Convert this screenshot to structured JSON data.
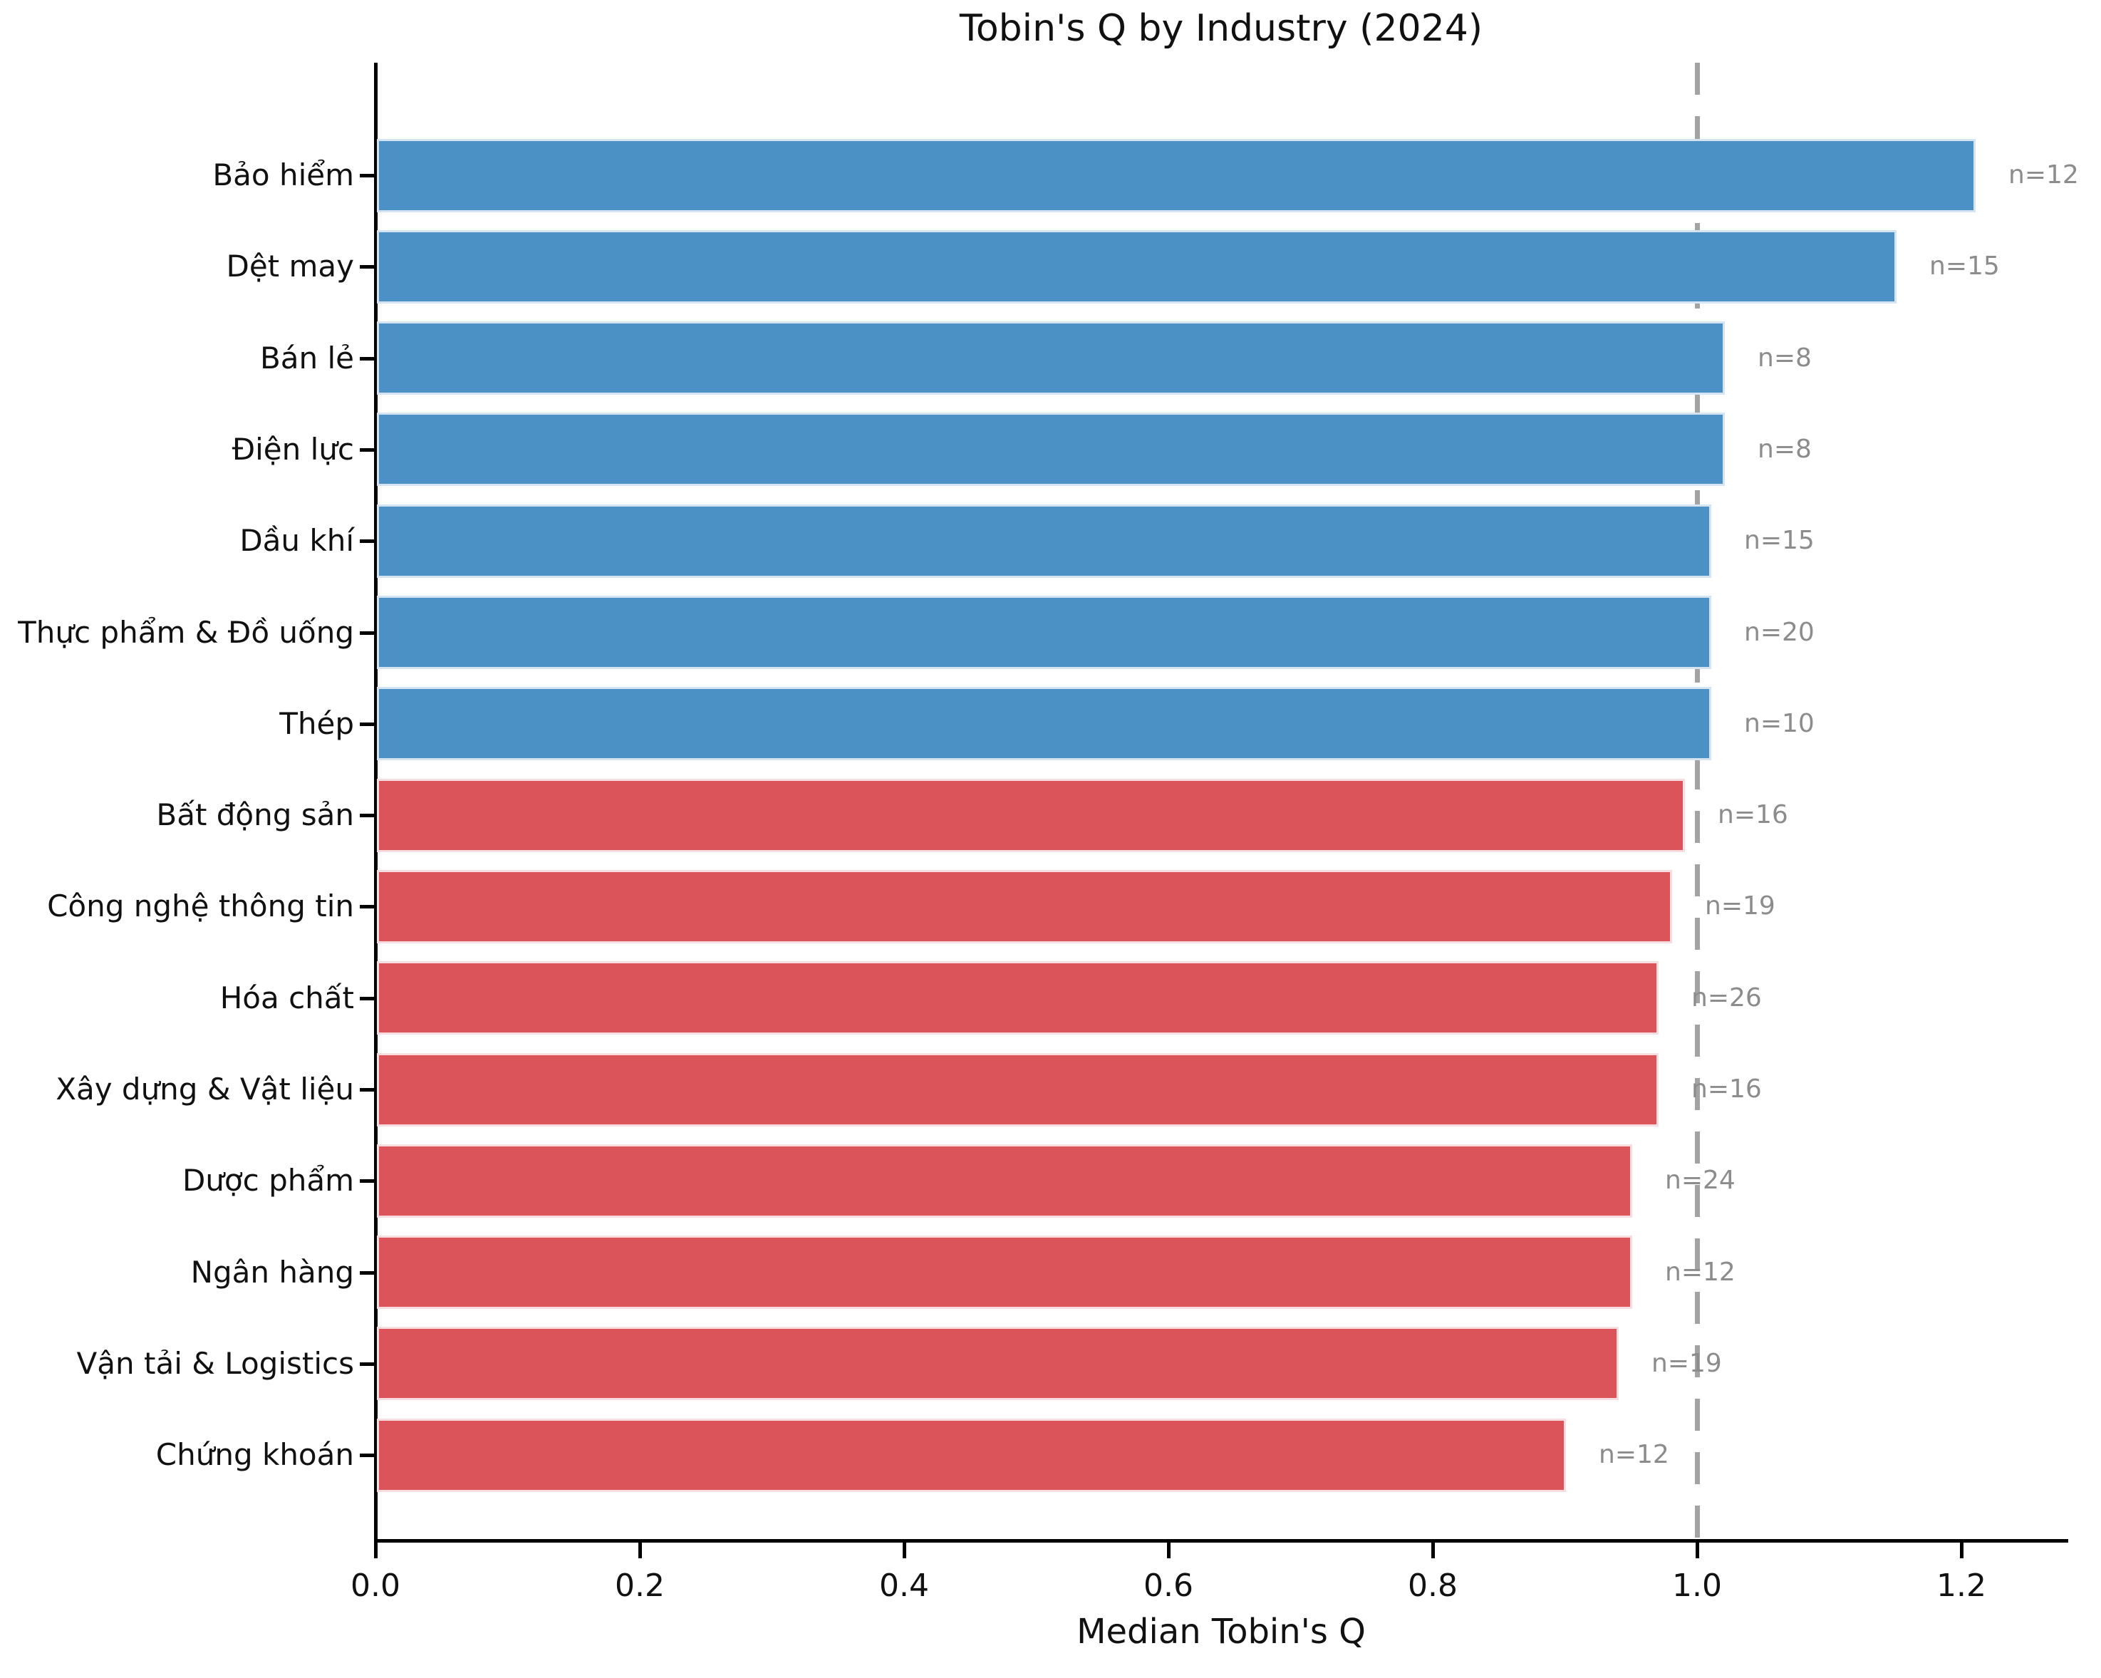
{
  "title": "Tobin's Q by Industry (2024)",
  "chart_data": {
    "type": "bar",
    "orientation": "horizontal",
    "title": "Tobin's Q by Industry (2024)",
    "xlabel": "Median Tobin's Q",
    "ylabel": "",
    "xlim": [
      0,
      1.28
    ],
    "x_ticks": [
      0.0,
      0.2,
      0.4,
      0.6,
      0.8,
      1.0,
      1.2
    ],
    "x_tick_labels": [
      "0.0",
      "0.2",
      "0.4",
      "0.6",
      "0.8",
      "1.0",
      "1.2"
    ],
    "grid": false,
    "legend": null,
    "reference_line": {
      "value": 1.0,
      "style": "dashed",
      "color": "#a3a3a3"
    },
    "categories": [
      "Bảo hiểm",
      "Dệt may",
      "Bán lẻ",
      "Điện lực",
      "Dầu khí",
      "Thực phẩm & Đồ uống",
      "Thép",
      "Bất động sản",
      "Công nghệ thông tin",
      "Hóa chất",
      "Xây dựng & Vật liệu",
      "Dược phẩm",
      "Ngân hàng",
      "Vận tải & Logistics",
      "Chứng khoán"
    ],
    "values": [
      1.21,
      1.15,
      1.02,
      1.02,
      1.01,
      1.01,
      1.01,
      0.99,
      0.98,
      0.97,
      0.97,
      0.95,
      0.95,
      0.94,
      0.9
    ],
    "sample_sizes": [
      12,
      15,
      8,
      8,
      15,
      20,
      10,
      16,
      19,
      26,
      16,
      24,
      12,
      19,
      12
    ],
    "bar_labels": [
      "n=12",
      "n=15",
      "n=8",
      "n=8",
      "n=15",
      "n=20",
      "n=10",
      "n=16",
      "n=19",
      "n=26",
      "n=16",
      "n=24",
      "n=12",
      "n=19",
      "n=12"
    ],
    "bar_colors": [
      "#4b91c6",
      "#4b91c6",
      "#4b91c6",
      "#4b91c6",
      "#4b91c6",
      "#4b91c6",
      "#4b91c6",
      "#da545a",
      "#da545a",
      "#da545a",
      "#da545a",
      "#da545a",
      "#da545a",
      "#da545a",
      "#da545a"
    ]
  },
  "styles": {
    "blue_bar": "#4b91c6",
    "red_bar": "#da545a",
    "blue_bar_edge": "#d4e4f2",
    "red_bar_edge": "#f7dde0",
    "annotation_gray": "#8c8c8c",
    "reference_line_gray": "#a3a3a3",
    "axis_color": "#000000",
    "background": "#ffffff"
  }
}
